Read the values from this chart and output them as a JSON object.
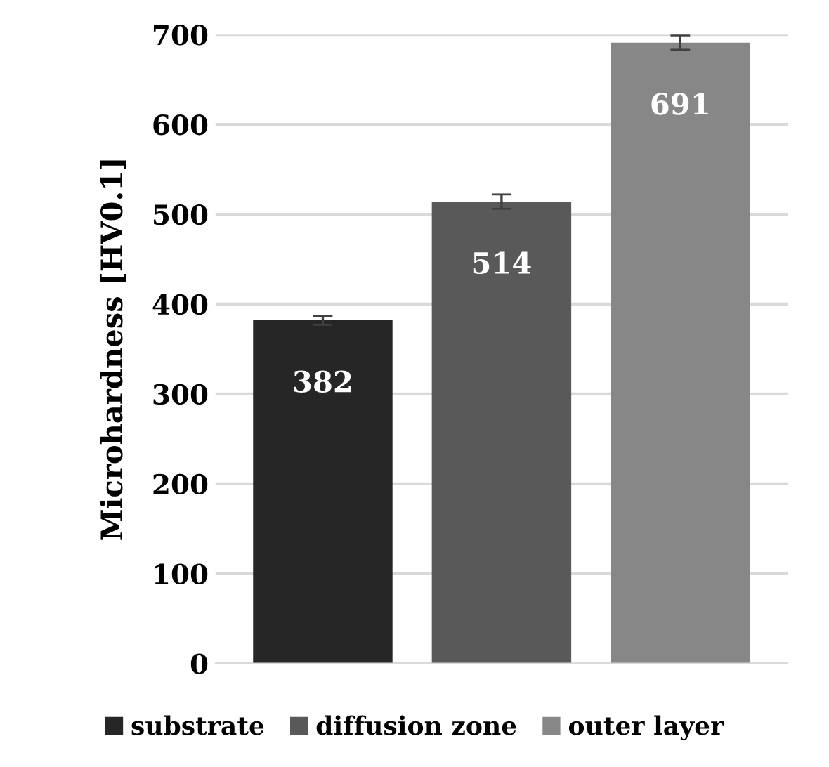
{
  "chart_data": {
    "type": "bar",
    "ylabel": "Microhardness [HV0.1]",
    "categories": [
      null,
      null,
      null
    ],
    "series": [
      {
        "name": "substrate",
        "color": "#262626",
        "values": [
          382,
          null,
          null
        ],
        "errors": [
          5,
          null,
          null
        ]
      },
      {
        "name": "diffusion zone",
        "color": "#595959",
        "values": [
          null,
          514,
          null
        ],
        "errors": [
          null,
          8,
          null
        ]
      },
      {
        "name": "outer layer",
        "color": "#878787",
        "values": [
          null,
          null,
          691
        ],
        "errors": [
          null,
          null,
          8
        ]
      }
    ],
    "ylim": [
      0,
      700
    ],
    "yticks": [
      0,
      100,
      200,
      300,
      400,
      500,
      600,
      700
    ],
    "grid": "y",
    "legend": "bottom",
    "data_labels": true,
    "tick_labels": "y"
  }
}
